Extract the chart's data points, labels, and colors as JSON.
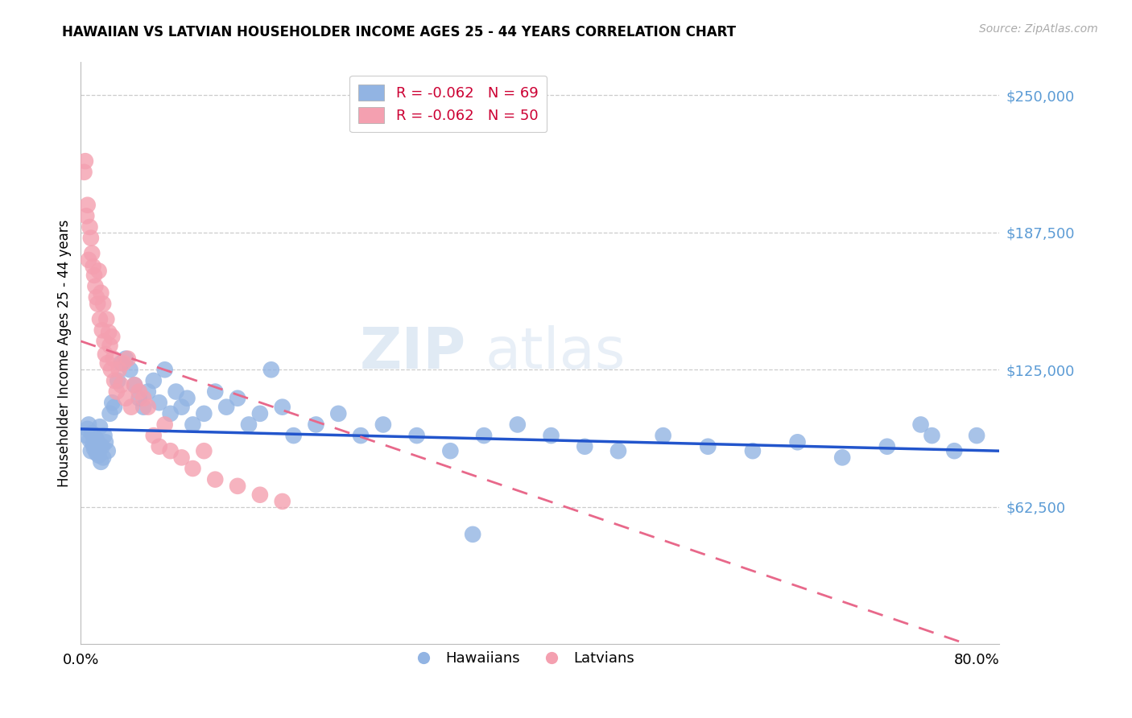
{
  "title": "HAWAIIAN VS LATVIAN HOUSEHOLDER INCOME AGES 25 - 44 YEARS CORRELATION CHART",
  "source": "Source: ZipAtlas.com",
  "ylabel": "Householder Income Ages 25 - 44 years",
  "right_ytick_labels": [
    "$250,000",
    "$187,500",
    "$125,000",
    "$62,500"
  ],
  "right_ytick_values": [
    250000,
    187500,
    125000,
    62500
  ],
  "ylim": [
    0,
    265000
  ],
  "xlim": [
    0.0,
    0.82
  ],
  "legend_blue_text": "R = -0.062   N = 69",
  "legend_pink_text": "R = -0.062   N = 50",
  "hawaiian_color": "#92b4e3",
  "latvian_color": "#f4a0b0",
  "trend_blue": "#2255cc",
  "trend_pink": "#e8688a",
  "hawaiian_x": [
    0.005,
    0.006,
    0.007,
    0.008,
    0.009,
    0.01,
    0.011,
    0.012,
    0.013,
    0.014,
    0.015,
    0.016,
    0.017,
    0.018,
    0.019,
    0.02,
    0.021,
    0.022,
    0.024,
    0.026,
    0.028,
    0.03,
    0.033,
    0.036,
    0.04,
    0.044,
    0.048,
    0.052,
    0.056,
    0.06,
    0.065,
    0.07,
    0.075,
    0.08,
    0.085,
    0.09,
    0.095,
    0.1,
    0.11,
    0.12,
    0.13,
    0.14,
    0.15,
    0.16,
    0.17,
    0.18,
    0.19,
    0.21,
    0.23,
    0.25,
    0.27,
    0.3,
    0.33,
    0.36,
    0.39,
    0.42,
    0.45,
    0.48,
    0.52,
    0.56,
    0.6,
    0.64,
    0.68,
    0.72,
    0.76,
    0.78,
    0.8,
    0.75,
    0.35
  ],
  "hawaiian_y": [
    95000,
    98000,
    100000,
    93000,
    88000,
    96000,
    91000,
    89000,
    94000,
    87000,
    92000,
    86000,
    99000,
    83000,
    90000,
    85000,
    95000,
    92000,
    88000,
    105000,
    110000,
    108000,
    120000,
    128000,
    130000,
    125000,
    118000,
    112000,
    108000,
    115000,
    120000,
    110000,
    125000,
    105000,
    115000,
    108000,
    112000,
    100000,
    105000,
    115000,
    108000,
    112000,
    100000,
    105000,
    125000,
    108000,
    95000,
    100000,
    105000,
    95000,
    100000,
    95000,
    88000,
    95000,
    100000,
    95000,
    90000,
    88000,
    95000,
    90000,
    88000,
    92000,
    85000,
    90000,
    95000,
    88000,
    95000,
    100000,
    50000
  ],
  "latvian_x": [
    0.003,
    0.004,
    0.005,
    0.006,
    0.007,
    0.008,
    0.009,
    0.01,
    0.011,
    0.012,
    0.013,
    0.014,
    0.015,
    0.016,
    0.017,
    0.018,
    0.019,
    0.02,
    0.021,
    0.022,
    0.023,
    0.024,
    0.025,
    0.026,
    0.027,
    0.028,
    0.029,
    0.03,
    0.032,
    0.034,
    0.036,
    0.038,
    0.04,
    0.042,
    0.045,
    0.048,
    0.052,
    0.056,
    0.06,
    0.065,
    0.07,
    0.075,
    0.08,
    0.09,
    0.1,
    0.11,
    0.12,
    0.14,
    0.16,
    0.18
  ],
  "latvian_y": [
    215000,
    220000,
    195000,
    200000,
    175000,
    190000,
    185000,
    178000,
    172000,
    168000,
    163000,
    158000,
    155000,
    170000,
    148000,
    160000,
    143000,
    155000,
    138000,
    132000,
    148000,
    128000,
    142000,
    136000,
    125000,
    140000,
    130000,
    120000,
    115000,
    125000,
    118000,
    128000,
    112000,
    130000,
    108000,
    118000,
    115000,
    112000,
    108000,
    95000,
    90000,
    100000,
    88000,
    85000,
    80000,
    88000,
    75000,
    72000,
    68000,
    65000
  ],
  "haw_trend_x": [
    0.0,
    0.82
  ],
  "haw_trend_y": [
    98000,
    88000
  ],
  "lat_trend_x": [
    0.0,
    0.82
  ],
  "lat_trend_y": [
    138000,
    -5000
  ]
}
